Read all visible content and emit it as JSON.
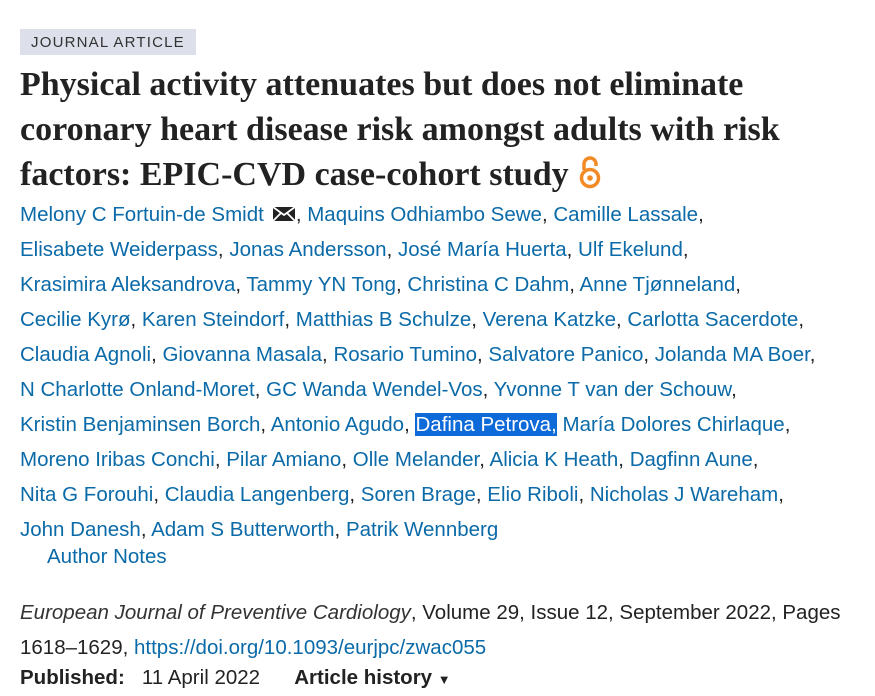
{
  "article_type": "JOURNAL ARTICLE",
  "title": "Physical activity attenuates but does not eliminate coronary heart disease risk amongst adults with risk factors: EPIC-CVD case-cohort study",
  "author_lines": [
    [
      {
        "name": "Melony C Fortuin-de Smidt",
        "sep": ",",
        "corresponding": true
      },
      {
        "name": "Maquins Odhiambo Sewe",
        "sep": ","
      },
      {
        "name": "Camille Lassale",
        "sep": ","
      }
    ],
    [
      {
        "name": "Elisabete Weiderpass",
        "sep": ","
      },
      {
        "name": "Jonas Andersson",
        "sep": ","
      },
      {
        "name": "José María Huerta",
        "sep": ","
      },
      {
        "name": "Ulf Ekelund",
        "sep": ","
      }
    ],
    [
      {
        "name": "Krasimira Aleksandrova",
        "sep": ","
      },
      {
        "name": "Tammy YN Tong",
        "sep": ","
      },
      {
        "name": "Christina C Dahm",
        "sep": ","
      },
      {
        "name": "Anne Tjønneland",
        "sep": ","
      }
    ],
    [
      {
        "name": "Cecilie Kyrø",
        "sep": ","
      },
      {
        "name": "Karen Steindorf",
        "sep": ","
      },
      {
        "name": "Matthias B Schulze",
        "sep": ","
      },
      {
        "name": "Verena Katzke",
        "sep": ","
      },
      {
        "name": "Carlotta Sacerdote",
        "sep": ","
      }
    ],
    [
      {
        "name": "Claudia Agnoli",
        "sep": ","
      },
      {
        "name": "Giovanna Masala",
        "sep": ","
      },
      {
        "name": "Rosario Tumino",
        "sep": ","
      },
      {
        "name": "Salvatore Panico",
        "sep": ","
      },
      {
        "name": "Jolanda MA Boer",
        "sep": ","
      }
    ],
    [
      {
        "name": "N Charlotte Onland-Moret",
        "sep": ","
      },
      {
        "name": "GC Wanda Wendel-Vos",
        "sep": ","
      },
      {
        "name": "Yvonne T van der Schouw",
        "sep": ","
      }
    ],
    [
      {
        "name": "Kristin Benjaminsen Borch",
        "sep": ","
      },
      {
        "name": "Antonio Agudo",
        "sep": ","
      },
      {
        "name": "Dafina Petrova",
        "sep": ",",
        "selected": true
      },
      {
        "name": "María Dolores Chirlaque",
        "sep": ","
      }
    ],
    [
      {
        "name": "Moreno Iribas Conchi",
        "sep": ","
      },
      {
        "name": "Pilar Amiano",
        "sep": ","
      },
      {
        "name": "Olle Melander",
        "sep": ","
      },
      {
        "name": "Alicia K Heath",
        "sep": ","
      },
      {
        "name": "Dagfinn Aune",
        "sep": ","
      }
    ],
    [
      {
        "name": "Nita G Forouhi",
        "sep": ","
      },
      {
        "name": "Claudia Langenberg",
        "sep": ","
      },
      {
        "name": "Soren Brage",
        "sep": ","
      },
      {
        "name": "Elio Riboli",
        "sep": ","
      },
      {
        "name": "Nicholas J Wareham",
        "sep": ","
      }
    ],
    [
      {
        "name": "John Danesh",
        "sep": ","
      },
      {
        "name": "Adam S Butterworth",
        "sep": ","
      },
      {
        "name": "Patrik Wennberg"
      }
    ]
  ],
  "author_notes": "Author Notes",
  "citation": {
    "journal": "European Journal of Preventive Cardiology",
    "details": ", Volume 29, Issue 12, September 2022, Pages 1618–1629, ",
    "doi": "https://doi.org/10.1093/eurjpc/zwac055"
  },
  "published_label": "Published:",
  "published_date": "11 April 2022",
  "article_history": "Article history"
}
